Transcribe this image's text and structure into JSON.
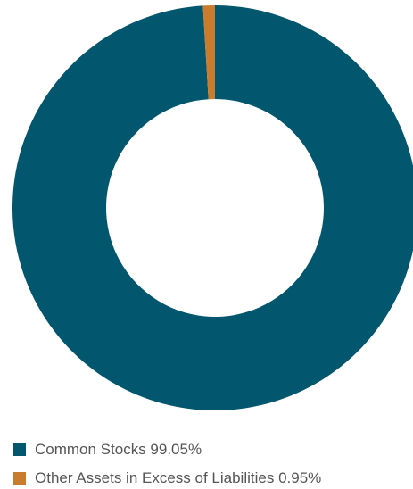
{
  "chart_data": {
    "type": "pie",
    "style": "donut",
    "legend_position": "bottom-left",
    "series": [
      {
        "name": "Common Stocks",
        "value": 99.05,
        "color": "#02566E",
        "legend_label": "Common Stocks 99.05%"
      },
      {
        "name": "Other Assets in Excess of Liabilities",
        "value": 0.95,
        "color": "#C97B2E",
        "legend_label": "Other Assets in Excess of Liabilities 0.95%"
      }
    ]
  }
}
